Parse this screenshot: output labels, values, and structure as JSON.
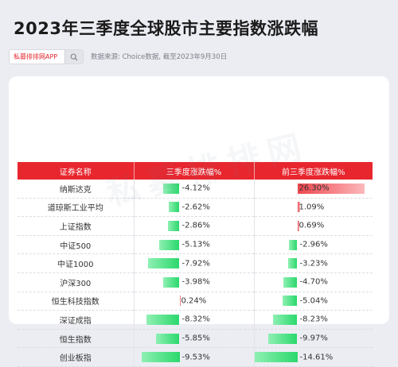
{
  "title": "2023年三季度全球股市主要指数涨跌幅",
  "search": {
    "text": "私募排排网APP",
    "icon": "search-icon"
  },
  "source": "数据来源: Choice数据, 截至2023年9月30日",
  "watermark": "私募排排网",
  "colors": {
    "header": "#e8262e",
    "green": "#2bd86c",
    "red": "#f0464e"
  },
  "chart_data": {
    "type": "table",
    "columns": [
      "证券名称",
      "三季度涨跌幅%",
      "前三季度涨跌幅%"
    ],
    "rows": [
      {
        "name": "纳斯达克",
        "q3": -4.12,
        "q3_label": "-4.12%",
        "ytd": 26.3,
        "ytd_label": "26.30%"
      },
      {
        "name": "道琼斯工业平均",
        "q3": -2.62,
        "q3_label": "-2.62%",
        "ytd": 1.09,
        "ytd_label": "1.09%"
      },
      {
        "name": "上证指数",
        "q3": -2.86,
        "q3_label": "-2.86%",
        "ytd": 0.69,
        "ytd_label": "0.69%"
      },
      {
        "name": "中证500",
        "q3": -5.13,
        "q3_label": "-5.13%",
        "ytd": -2.96,
        "ytd_label": "-2.96%"
      },
      {
        "name": "中证1000",
        "q3": -7.92,
        "q3_label": "-7.92%",
        "ytd": -3.23,
        "ytd_label": "-3.23%"
      },
      {
        "name": "沪深300",
        "q3": -3.98,
        "q3_label": "-3.98%",
        "ytd": -4.7,
        "ytd_label": "-4.70%"
      },
      {
        "name": "恒生科技指数",
        "q3": 0.24,
        "q3_label": "0.24%",
        "ytd": -5.04,
        "ytd_label": "-5.04%"
      },
      {
        "name": "深证成指",
        "q3": -8.32,
        "q3_label": "-8.32%",
        "ytd": -8.23,
        "ytd_label": "-8.23%"
      },
      {
        "name": "恒生指数",
        "q3": -5.85,
        "q3_label": "-5.85%",
        "ytd": -9.97,
        "ytd_label": "-9.97%"
      },
      {
        "name": "创业板指",
        "q3": -9.53,
        "q3_label": "-9.53%",
        "ytd": -14.61,
        "ytd_label": "-14.61%"
      }
    ]
  }
}
